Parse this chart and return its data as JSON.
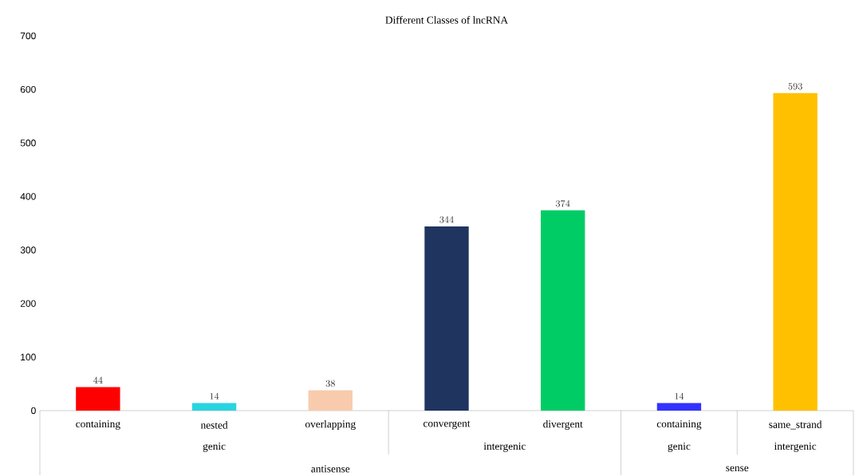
{
  "chart_data": {
    "type": "bar",
    "title": "Different Classes of lncRNA",
    "categories": [
      "containing",
      "nested",
      "overlapping",
      "convergent",
      "divergent",
      "containing",
      "same_strand"
    ],
    "values": [
      44,
      14,
      38,
      344,
      374,
      14,
      593
    ],
    "colors": [
      "#ff0000",
      "#29d4e0",
      "#f8cbad",
      "#1f3560",
      "#00cc66",
      "#3333ff",
      "#ffc000"
    ],
    "ylim": [
      0,
      700
    ],
    "yticks": [
      0,
      100,
      200,
      300,
      400,
      500,
      600,
      700
    ],
    "grid": false,
    "data_labels": true,
    "annotations": [
      "genic",
      "intergenic",
      "genic",
      "intergenic",
      "antisense",
      "sense"
    ]
  }
}
